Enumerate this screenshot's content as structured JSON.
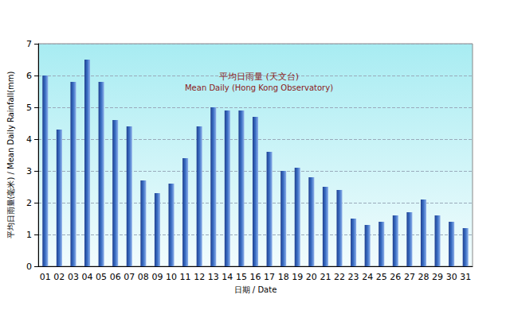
{
  "chart_data": {
    "type": "bar",
    "title": "平均日雨量 (天文台)",
    "subtitle": "Mean Daily (Hong Kong Observatory)",
    "x_label": "日期 / Date",
    "y_label": "平均日雨量(毫米) / Mean Daily Rainfall(mm)",
    "categories": [
      "01",
      "02",
      "03",
      "04",
      "05",
      "06",
      "07",
      "08",
      "09",
      "10",
      "11",
      "12",
      "13",
      "14",
      "15",
      "16",
      "17",
      "18",
      "19",
      "20",
      "21",
      "22",
      "23",
      "24",
      "25",
      "26",
      "27",
      "28",
      "29",
      "30",
      "31"
    ],
    "values": [
      6.0,
      4.3,
      5.8,
      6.5,
      5.8,
      4.6,
      4.4,
      2.7,
      2.3,
      2.6,
      3.4,
      4.4,
      5.0,
      4.9,
      4.9,
      4.7,
      3.6,
      3.0,
      3.1,
      2.8,
      2.5,
      2.4,
      1.5,
      1.3,
      1.4,
      1.6,
      1.7,
      2.1,
      1.6,
      1.4,
      1.2
    ],
    "color": "#3a6fc4",
    "ylim": [
      0,
      7
    ],
    "yticks": [
      0,
      1,
      2,
      3,
      4,
      5,
      6,
      7
    ],
    "grid": true
  }
}
